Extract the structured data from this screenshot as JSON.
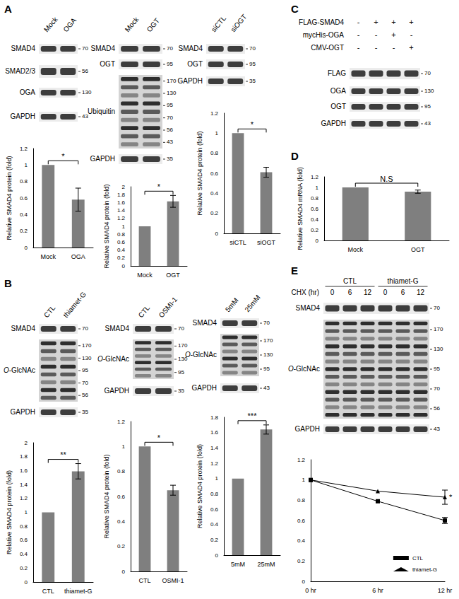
{
  "panel_labels": [
    "A",
    "B",
    "C",
    "D",
    "E"
  ],
  "blots": [
    {
      "columns": [
        "Mock",
        "OGA"
      ],
      "rows": [
        {
          "label": "SMAD4",
          "markers": [
            70
          ]
        },
        {
          "label": "SMAD2/3",
          "markers": [
            56
          ]
        },
        {
          "label": "OGA",
          "markers": [
            130
          ]
        },
        {
          "label": "GAPDH",
          "markers": [
            43
          ]
        }
      ]
    },
    {
      "columns": [
        "Mock",
        "OGT"
      ],
      "rows": [
        {
          "label": "SMAD4",
          "markers": [
            70
          ]
        },
        {
          "label": "OGT",
          "markers": [
            95
          ]
        },
        {
          "label": "Ubiquitin",
          "markers": [
            170,
            130,
            95,
            70,
            56,
            43
          ]
        },
        {
          "label": "GAPDH",
          "markers": [
            35
          ]
        }
      ]
    },
    {
      "columns": [
        "siCTL",
        "siOGT"
      ],
      "rows": [
        {
          "label": "SMAD4",
          "markers": [
            70
          ]
        },
        {
          "label": "OGT",
          "markers": [
            95
          ]
        },
        {
          "label": "GAPDH",
          "markers": [
            35
          ]
        }
      ]
    },
    {
      "conditions": [
        {
          "label": "FLAG-SMAD4",
          "marks": [
            "-",
            "+",
            "+",
            "+"
          ]
        },
        {
          "label": "mycHis-OGA",
          "marks": [
            "-",
            "-",
            "+",
            "-"
          ]
        },
        {
          "label": "CMV-OGT",
          "marks": [
            "-",
            "-",
            "-",
            "+"
          ]
        }
      ],
      "rows": [
        {
          "label": "FLAG",
          "markers": [
            70
          ]
        },
        {
          "label": "OGA",
          "markers": [
            130
          ]
        },
        {
          "label": "OGT",
          "markers": [
            95
          ]
        },
        {
          "label": "GAPDH",
          "markers": [
            43
          ]
        }
      ]
    },
    {
      "columns": [
        "CTL",
        "thiamet-G"
      ],
      "rows": [
        {
          "label": "SMAD4",
          "markers": [
            70
          ]
        },
        {
          "label": "O-GlcNAc",
          "markers": [
            170,
            130,
            95,
            70,
            56
          ]
        },
        {
          "label": "GAPDH",
          "markers": [
            35
          ]
        }
      ]
    },
    {
      "columns": [
        "CTL",
        "OSMI-1"
      ],
      "rows": [
        {
          "label": "SMAD4",
          "markers": [
            70
          ]
        },
        {
          "label": "O-GlcNAc",
          "markers": [
            170,
            130,
            95
          ]
        },
        {
          "label": "GAPDH",
          "markers": [
            35
          ]
        }
      ]
    },
    {
      "columns": [
        "5mM",
        "25mM"
      ],
      "rows": [
        {
          "label": "SMAD4",
          "markers": [
            70
          ]
        },
        {
          "label": "O-GlcNAc",
          "markers": [
            170,
            130,
            95
          ]
        },
        {
          "label": "GAPDH",
          "markers": [
            43
          ]
        }
      ]
    },
    {
      "column_title": "CHX (hr)",
      "groups": [
        {
          "label": "CTL",
          "columns": [
            "0",
            "6",
            "12"
          ]
        },
        {
          "label": "thiamet-G",
          "columns": [
            "0",
            "6",
            "12"
          ]
        }
      ],
      "rows": [
        {
          "label": "SMAD4",
          "markers": [
            70
          ]
        },
        {
          "label": "O-GlcNAc",
          "markers": [
            170,
            130,
            95,
            70,
            56
          ]
        },
        {
          "label": "GAPDH",
          "markers": [
            43
          ]
        }
      ]
    }
  ],
  "chart_data": [
    {
      "type": "bar",
      "categories": [
        "Mock",
        "OGA"
      ],
      "values": [
        1,
        0.58
      ],
      "errors": [
        0,
        0.14
      ],
      "y_label": "Relative SMAD4 protein (fold)",
      "ylim": [
        0,
        1.2
      ],
      "yticks": [
        0,
        0.2,
        0.4,
        0.6,
        0.8,
        1,
        1.2
      ],
      "color": "#7f7f7f",
      "grid": false,
      "annotation": "*"
    },
    {
      "type": "bar",
      "categories": [
        "Mock",
        "OGT"
      ],
      "values": [
        1,
        1.63
      ],
      "errors": [
        0,
        0.15
      ],
      "y_label": "Relative SMAD4 protein (fold)",
      "ylim": [
        0,
        2
      ],
      "yticks": [
        0,
        0.2,
        0.4,
        0.6,
        0.8,
        1,
        1.2,
        1.4,
        1.6,
        1.8,
        2
      ],
      "color": "#7f7f7f",
      "grid": false,
      "annotation": "*"
    },
    {
      "type": "bar",
      "categories": [
        "siCTL",
        "siOGT"
      ],
      "values": [
        1,
        0.61
      ],
      "errors": [
        0,
        0.05
      ],
      "y_label": "Relative SMAD4 protein (fold)",
      "ylim": [
        0,
        1.2
      ],
      "yticks": [
        0,
        0.2,
        0.4,
        0.6,
        0.8,
        1,
        1.2
      ],
      "color": "#7f7f7f",
      "grid": false,
      "annotation": "*"
    },
    {
      "type": "bar",
      "categories": [
        "Mock",
        "OGT"
      ],
      "values": [
        1,
        0.92
      ],
      "errors": [
        0,
        0.03
      ],
      "y_label": "Relative SMAD4 mRNA (fold)",
      "ylim": [
        0,
        1.2
      ],
      "yticks": [
        0,
        0.2,
        0.4,
        0.6,
        0.8,
        1,
        1.2
      ],
      "color": "#7f7f7f",
      "grid": false,
      "annotation": "N.S"
    },
    {
      "type": "bar",
      "categories": [
        "CTL",
        "thiamet-G"
      ],
      "values": [
        1,
        1.59
      ],
      "errors": [
        0,
        0.11
      ],
      "y_label": "Relative SMAD4 protein (fold)",
      "ylim": [
        0,
        2
      ],
      "yticks": [
        0,
        0.2,
        0.4,
        0.6,
        0.8,
        1,
        1.2,
        1.4,
        1.6,
        1.8,
        2
      ],
      "color": "#7f7f7f",
      "grid": false,
      "annotation": "**"
    },
    {
      "type": "bar",
      "categories": [
        "CTL",
        "OSMI-1"
      ],
      "values": [
        1,
        0.65
      ],
      "errors": [
        0,
        0.04
      ],
      "y_label": "Relative SMAD4 protein (fold)",
      "ylim": [
        0,
        1.2
      ],
      "yticks": [
        0,
        0.2,
        0.4,
        0.6,
        0.8,
        1,
        1.2
      ],
      "color": "#7f7f7f",
      "grid": false,
      "annotation": "*"
    },
    {
      "type": "bar",
      "categories": [
        "5mM",
        "25mM"
      ],
      "values": [
        1,
        1.64
      ],
      "errors": [
        0,
        0.06
      ],
      "y_label": "Relative SMAD4 protein (fold)",
      "ylim": [
        0,
        1.8
      ],
      "yticks": [
        0,
        0.2,
        0.4,
        0.6,
        0.8,
        1,
        1.2,
        1.4,
        1.6,
        1.8
      ],
      "color": "#7f7f7f",
      "grid": false,
      "annotation": "***"
    },
    {
      "type": "line",
      "categories": [
        "0 hr",
        "6 hr",
        "12 hr"
      ],
      "series": [
        {
          "name": "CTL",
          "color": "#000000",
          "marker": "square",
          "values": [
            1,
            0.79,
            0.6
          ],
          "errors": [
            0,
            0,
            0.03
          ]
        },
        {
          "name": "thiamet-G",
          "color": "#000000",
          "marker": "triangle",
          "values": [
            1,
            0.89,
            0.83
          ],
          "errors": [
            0,
            0,
            0.07
          ],
          "annotation": "*"
        }
      ],
      "ylim": [
        0,
        1.2
      ],
      "yticks": [
        0,
        0.2,
        0.4,
        0.6,
        0.8,
        1,
        1.2
      ],
      "grid": false,
      "legend": "lower-right"
    }
  ]
}
